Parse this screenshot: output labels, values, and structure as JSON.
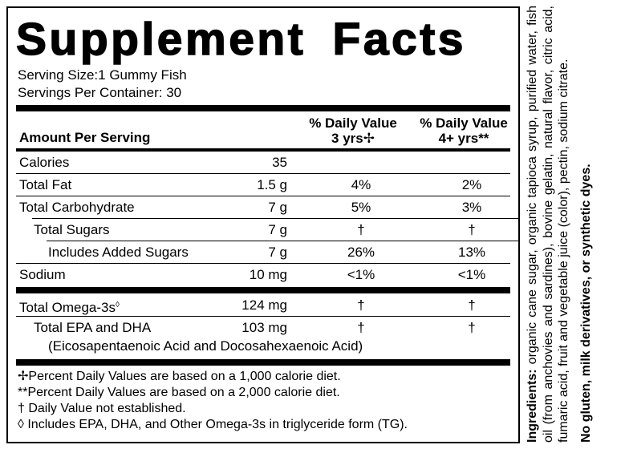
{
  "title": "Supplement Facts",
  "serving_size": "Serving Size:1 Gummy Fish",
  "servings_per_container": "Servings Per Container: 30",
  "header": {
    "amount": "Amount Per Serving",
    "dv1": [
      "% Daily Value",
      "3 yrs✢"
    ],
    "dv2": [
      "% Daily Value",
      "4+ yrs**"
    ]
  },
  "rows": [
    {
      "name": "Calories",
      "amount": "35"
    },
    {
      "name": "Total Fat",
      "amount": "1.5 g",
      "dv1": "4%",
      "dv2": "2%"
    },
    {
      "name": "Total Carbohydrate",
      "amount": "7 g",
      "dv1": "5%",
      "dv2": "3%"
    },
    {
      "name": "Total Sugars",
      "amount": "7 g",
      "dv1": "†",
      "dv2": "†"
    },
    {
      "name": "Includes Added Sugars",
      "amount": "7 g",
      "dv1": "26%",
      "dv2": "13%"
    },
    {
      "name": "Sodium",
      "amount": "10 mg",
      "dv1": "<1%",
      "dv2": "<1%"
    },
    {
      "name": "Total Omega-3s",
      "note": "◊",
      "amount": "124 mg",
      "dv1": "†",
      "dv2": "†"
    },
    {
      "name": "Total EPA and DHA",
      "amount": "103 mg",
      "dv1": "†",
      "dv2": "†",
      "subtext": "(Eicosapentaenoic Acid and Docosahexaenoic Acid)"
    }
  ],
  "footnotes": [
    "✢Percent Daily Values are based on a 1,000 calorie diet.",
    "**Percent Daily Values are based on a 2,000 calorie diet.",
    "† Daily Value not established.",
    "◊ Includes EPA, DHA, and Other Omega-3s in triglyceride form (TG)."
  ],
  "ingredients": {
    "label": "Ingredients:",
    "text": "organic cane sugar, organic tapioca syrup, purified water, fish oil (from anchovies and sardines), bovine gelatin, natural flavor, citric acid, fumaric acid, fruit and vegetable juice (color), pectin, sodium citrate."
  },
  "statement": "No gluten, milk derivatives, or synthetic dyes."
}
